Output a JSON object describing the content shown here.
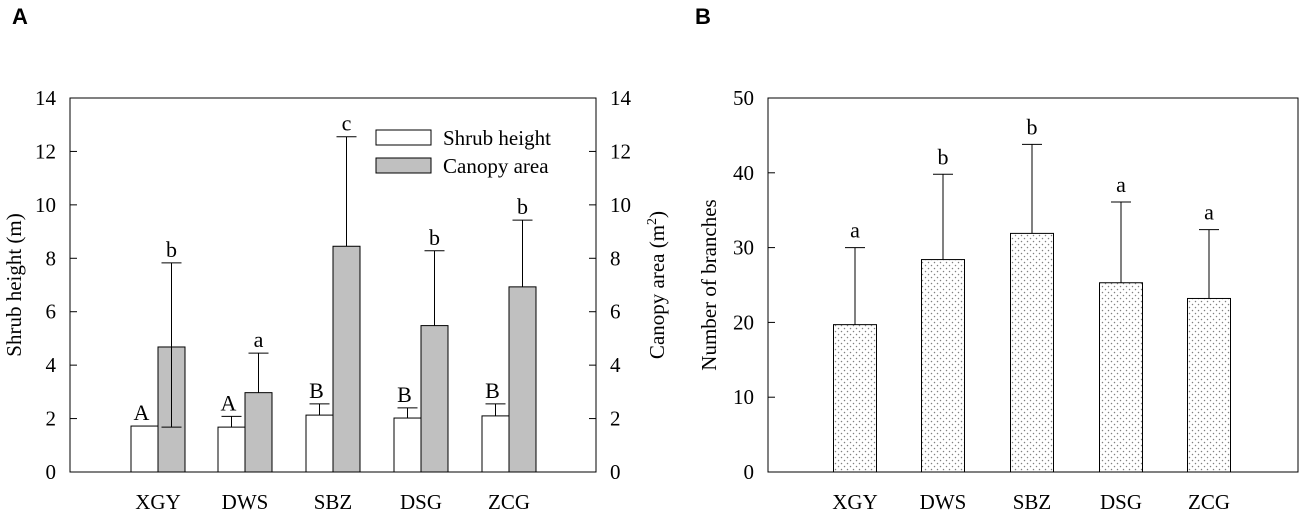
{
  "panels": {
    "a": {
      "letter": "A"
    },
    "b": {
      "letter": "B"
    }
  },
  "colors": {
    "shrub_fill": "#ffffff",
    "canopy_fill": "#c0c0c0",
    "branches_fill": "#ffffff",
    "branches_dots": "#808080",
    "stroke": "#000000"
  },
  "chart_data": [
    {
      "type": "bar",
      "panel": "A",
      "categories": [
        "XGY",
        "DWS",
        "SBZ",
        "DSG",
        "ZCG"
      ],
      "series": [
        {
          "name": "Shrub height",
          "axis": "left",
          "values": [
            1.72,
            1.68,
            2.13,
            2.02,
            2.1
          ],
          "error": [
            0,
            0.4,
            0.42,
            0.38,
            0.45
          ],
          "letters": [
            "A",
            "A",
            "B",
            "B",
            "B"
          ]
        },
        {
          "name": "Canopy area",
          "axis": "right",
          "values": [
            4.68,
            2.97,
            8.45,
            5.48,
            6.93
          ],
          "error": [
            3.15,
            1.48,
            4.1,
            2.8,
            2.5
          ],
          "letters": [
            "b",
            "a",
            "c",
            "b",
            "b"
          ]
        }
      ],
      "ylabel": "Shrub height (m)",
      "y2label_main": "Canopy area (m",
      "y2label_sup": "2",
      "y2label_end": ")",
      "ylim": [
        0,
        14
      ],
      "y2lim": [
        0,
        14
      ],
      "yticks": [
        "0",
        "2",
        "4",
        "6",
        "8",
        "10",
        "12",
        "14"
      ],
      "y2ticks": [
        "0",
        "2",
        "4",
        "6",
        "8",
        "10",
        "12",
        "14"
      ],
      "legend": [
        "Shrub height",
        "Canopy area"
      ],
      "legend_position": "top-right"
    },
    {
      "type": "bar",
      "panel": "B",
      "categories": [
        "XGY",
        "DWS",
        "SBZ",
        "DSG",
        "ZCG"
      ],
      "series": [
        {
          "name": "Number of branches",
          "values": [
            19.7,
            28.4,
            31.9,
            25.3,
            23.2
          ],
          "error": [
            10.3,
            11.4,
            11.9,
            10.8,
            9.2
          ],
          "letters": [
            "a",
            "b",
            "b",
            "a",
            "a"
          ]
        }
      ],
      "ylabel": "Number of branches",
      "ylim": [
        0,
        50
      ],
      "yticks": [
        "0",
        "10",
        "20",
        "30",
        "40",
        "50"
      ]
    }
  ]
}
